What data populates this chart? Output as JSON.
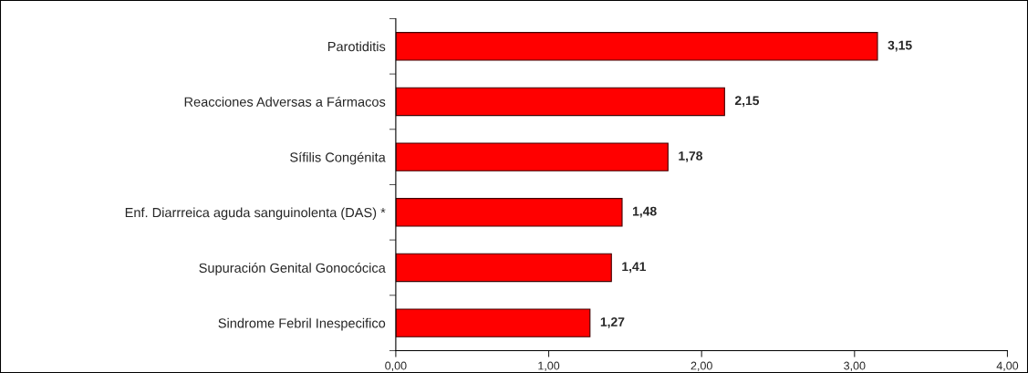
{
  "chart_data": {
    "type": "bar",
    "orientation": "horizontal",
    "categories": [
      "Parotiditis",
      "Reacciones Adversas a Fármacos",
      "Sífilis Congénita",
      "Enf. Diarrreica aguda sanguinolenta (DAS) *",
      "Supuración Genital Gonocócica",
      "Sindrome Febril Inespecifico"
    ],
    "values": [
      3.15,
      2.15,
      1.78,
      1.48,
      1.41,
      1.27
    ],
    "value_labels": [
      "3,15",
      "2,15",
      "1,78",
      "1,48",
      "1,41",
      "1,27"
    ],
    "color": "#ff0000",
    "xlim": [
      0,
      4
    ],
    "xticks": [
      {
        "value": 0,
        "label": "0,00"
      },
      {
        "value": 1,
        "label": "1,00"
      },
      {
        "value": 2,
        "label": "2,00"
      },
      {
        "value": 3,
        "label": "3,00"
      },
      {
        "value": 4,
        "label": "4,00"
      }
    ],
    "grid": false
  }
}
